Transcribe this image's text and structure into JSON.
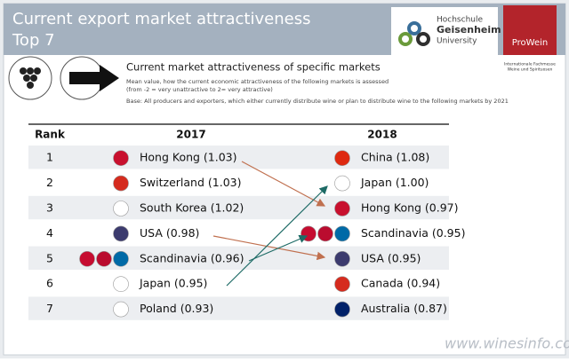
{
  "header": {
    "title": "Current export market attractiveness",
    "subtitle": "Top 7"
  },
  "logos": {
    "university": [
      "Hochschule",
      "Geisenheim",
      "University"
    ],
    "fair": "ProWein",
    "fair_caption": [
      "Internationale Fachmesse",
      "Weine und Spirituosen"
    ]
  },
  "intro": {
    "heading": "Current market attractiveness  of specific markets",
    "description": [
      "Mean value, how the current economic attractiveness  of the following markets is assessed",
      "(from -2 = very unattractive to 2= very attractive)"
    ],
    "base": "Base: All producers and exporters, which either currently distribute wine or plan to distribute wine to the following markets by 2021"
  },
  "table": {
    "columns": [
      "Rank",
      "2017",
      "2018"
    ],
    "rows": [
      [
        1,
        "Hong Kong (1.03)",
        "China (1.08)"
      ],
      [
        2,
        "Switzerland (1.03)",
        "Japan (1.00)"
      ],
      [
        3,
        "South Korea (1.02)",
        "Hong Kong (0.97)"
      ],
      [
        4,
        "USA (0.98)",
        "Scandinavia (0.95)"
      ],
      [
        5,
        "Scandinavia (0.96)",
        "USA (0.95)"
      ],
      [
        6,
        "Japan (0.95)",
        "Canada (0.94)"
      ],
      [
        7,
        "Poland (0.93)",
        "Australia (0.87)"
      ]
    ]
  },
  "watermark": "www.winesinfo.com"
}
